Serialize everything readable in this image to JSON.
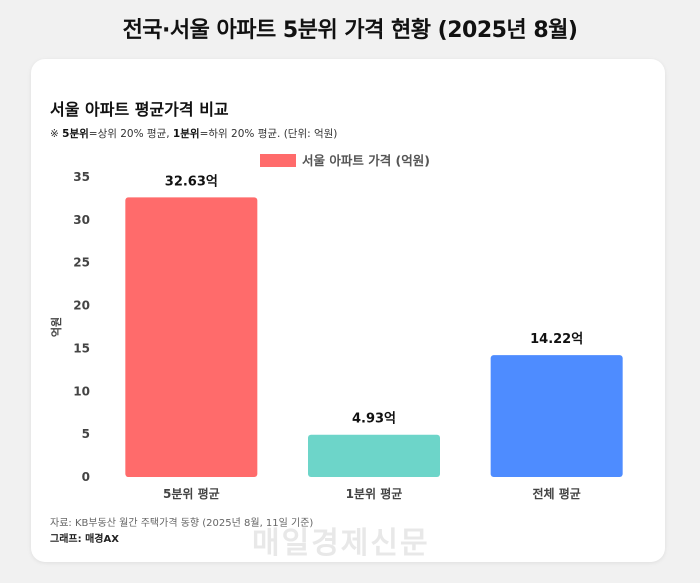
{
  "header": {
    "title": "전국·서울 아파트 5분위 가격 현황 (2025년 8월)"
  },
  "card": {
    "title": "서울 아파트 평균가격 비교",
    "note_prefix": "※ ",
    "note_term1": "5분위",
    "note_desc1": "=상위 20% 평균, ",
    "note_term2": "1분위",
    "note_desc2": "=하위 20% 평균. (단위: 억원)"
  },
  "chart_data": {
    "type": "bar",
    "categories": [
      "5분위 평균",
      "1분위 평균",
      "전체 평균"
    ],
    "series": [
      {
        "name": "서울 아파트 가격 (억원)",
        "values": [
          32.63,
          4.93,
          14.22
        ],
        "data_labels": [
          "32.63억",
          "4.93억",
          "14.22억"
        ],
        "colors": [
          "#ff6b6b",
          "#6dd5c9",
          "#4e8cff"
        ]
      }
    ],
    "legend_color": "#ff6b6b",
    "ylabel": "억원",
    "ylim": [
      0,
      35
    ],
    "yticks": [
      0,
      5,
      10,
      15,
      20,
      25,
      30,
      35
    ],
    "grid": false,
    "legend_position": "top-center"
  },
  "footer": {
    "source": "자료: KB부동산 월간 주택가격 동향 (2025년 8월, 11일 기준)",
    "credit": "그래프: 매경AX"
  },
  "watermark": "매일경제신문"
}
